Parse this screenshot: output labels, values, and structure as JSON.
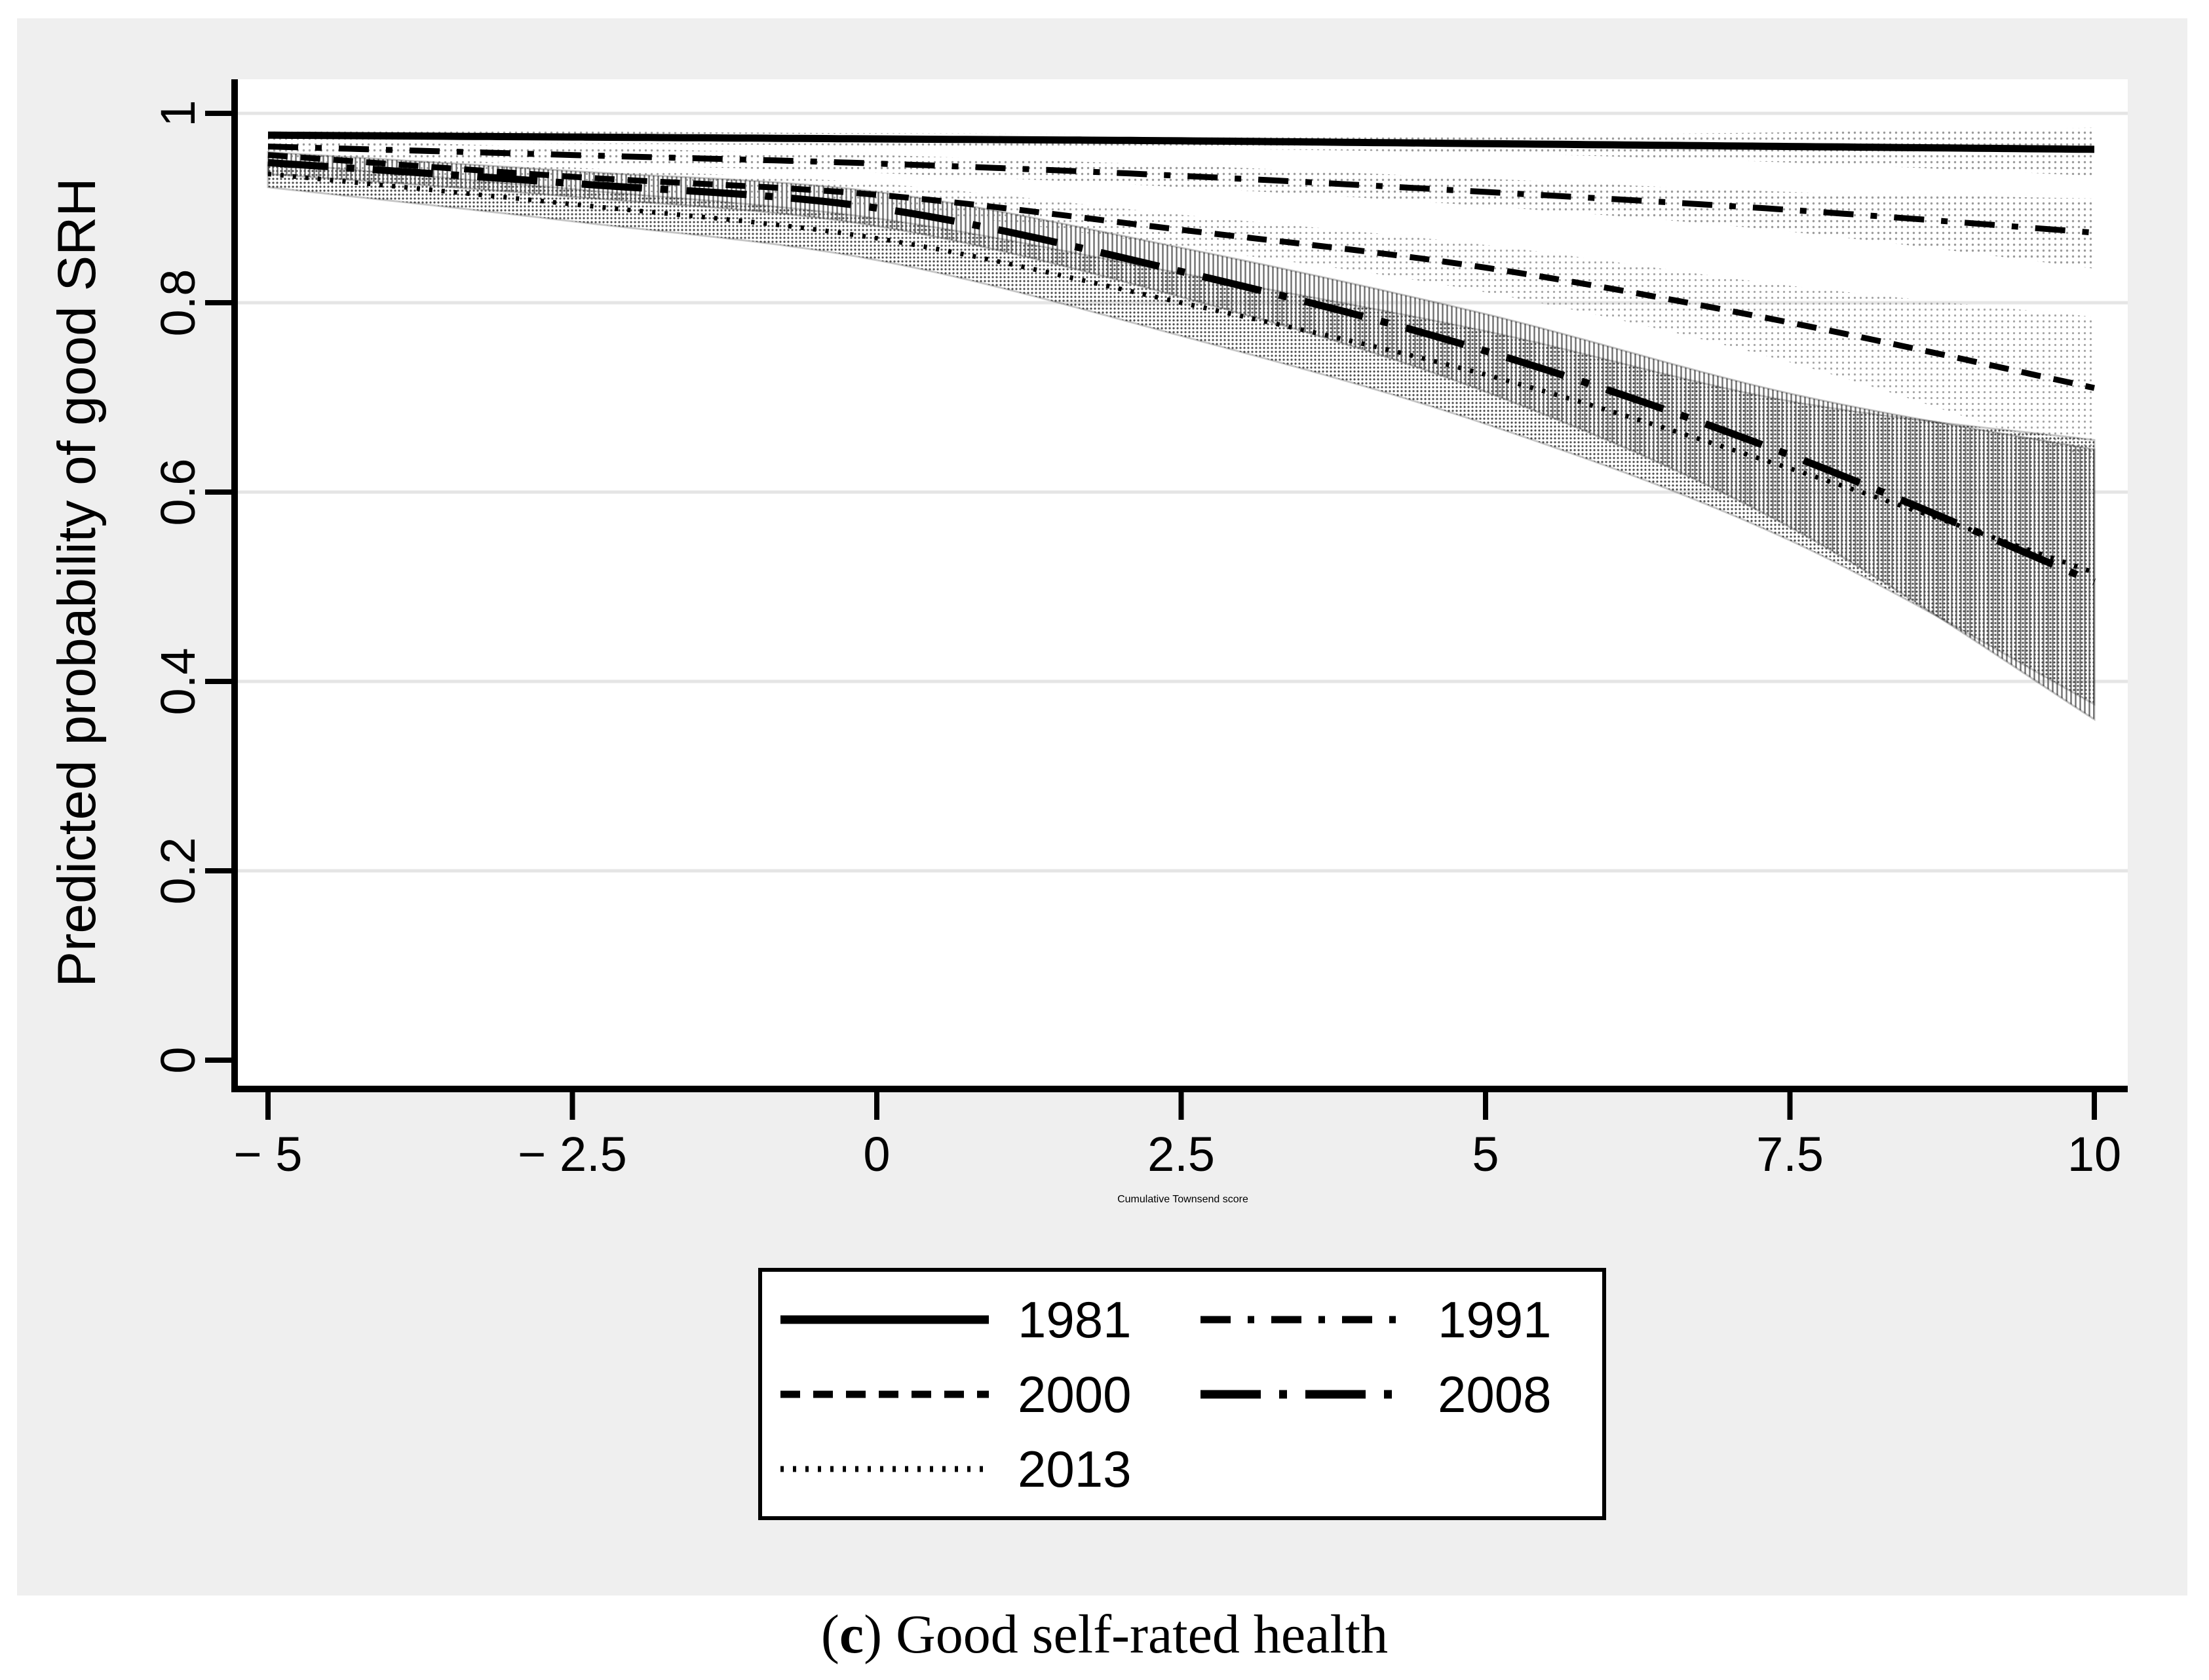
{
  "figure": {
    "background_color": "#efefef",
    "plot_background_color": "#ffffff",
    "grid_color": "#e5e5e5",
    "line_color": "#000000"
  },
  "axes": {
    "y_title": "Predicted probability of good SRH",
    "x_title": "Cumulative Townsend score",
    "x_tick_values": [
      -5,
      -2.5,
      0,
      2.5,
      5,
      7.5,
      10
    ],
    "x_tick_labels": [
      "− 5",
      "− 2.5",
      "0",
      "2.5",
      "5",
      "7.5",
      "10"
    ],
    "y_tick_values": [
      0,
      0.2,
      0.4,
      0.6,
      0.8,
      1
    ],
    "y_tick_labels": [
      "0",
      "0.2",
      "0.4",
      "0.6",
      "0.8",
      "1"
    ],
    "x_range": [
      -5,
      10
    ],
    "y_range": [
      0,
      1
    ]
  },
  "chart_data": {
    "type": "line",
    "title": "",
    "xlabel": "Cumulative Townsend score",
    "ylabel": "Predicted probability of good SRH",
    "xlim": [
      -5,
      10
    ],
    "ylim": [
      0,
      1
    ],
    "grid": "horizontal",
    "legend_position": "below-plot",
    "x": [
      -5,
      -2.5,
      0,
      2.5,
      5,
      7.5,
      10
    ],
    "series": [
      {
        "name": "1981",
        "style": "solid",
        "values": [
          0.977,
          0.975,
          0.973,
          0.971,
          0.968,
          0.965,
          0.962
        ],
        "ci_low": [
          0.97,
          0.968,
          0.966,
          0.963,
          0.958,
          0.948,
          0.934
        ],
        "ci_high": [
          0.984,
          0.981,
          0.979,
          0.978,
          0.977,
          0.98,
          0.985
        ]
      },
      {
        "name": "1991",
        "style": "dashdot",
        "values": [
          0.965,
          0.956,
          0.947,
          0.934,
          0.917,
          0.898,
          0.874
        ],
        "ci_low": [
          0.956,
          0.947,
          0.937,
          0.922,
          0.902,
          0.875,
          0.836
        ],
        "ci_high": [
          0.973,
          0.964,
          0.956,
          0.945,
          0.931,
          0.917,
          0.91
        ]
      },
      {
        "name": "2000",
        "style": "dash",
        "values": [
          0.956,
          0.933,
          0.914,
          0.877,
          0.837,
          0.779,
          0.71
        ],
        "ci_low": [
          0.946,
          0.922,
          0.901,
          0.859,
          0.811,
          0.737,
          0.634
        ],
        "ci_high": [
          0.965,
          0.943,
          0.926,
          0.893,
          0.861,
          0.818,
          0.785
        ]
      },
      {
        "name": "2008",
        "style": "longdashdot",
        "values": [
          0.948,
          0.926,
          0.9,
          0.833,
          0.749,
          0.639,
          0.505
        ],
        "ci_low": [
          0.936,
          0.912,
          0.881,
          0.806,
          0.706,
          0.563,
          0.36
        ],
        "ci_high": [
          0.959,
          0.939,
          0.917,
          0.858,
          0.788,
          0.704,
          0.645
        ]
      },
      {
        "name": "2013",
        "style": "dot",
        "values": [
          0.936,
          0.904,
          0.868,
          0.8,
          0.724,
          0.625,
          0.515
        ],
        "ci_low": [
          0.922,
          0.886,
          0.845,
          0.765,
          0.672,
          0.549,
          0.376
        ],
        "ci_high": [
          0.948,
          0.92,
          0.889,
          0.831,
          0.77,
          0.696,
          0.655
        ]
      }
    ]
  },
  "legend": {
    "rows": [
      [
        "1981",
        "1991"
      ],
      [
        "2000",
        "2008"
      ],
      [
        "2013"
      ]
    ]
  },
  "caption": {
    "open_paren": "(",
    "letter": "c",
    "rest": ") Good self-rated health"
  }
}
